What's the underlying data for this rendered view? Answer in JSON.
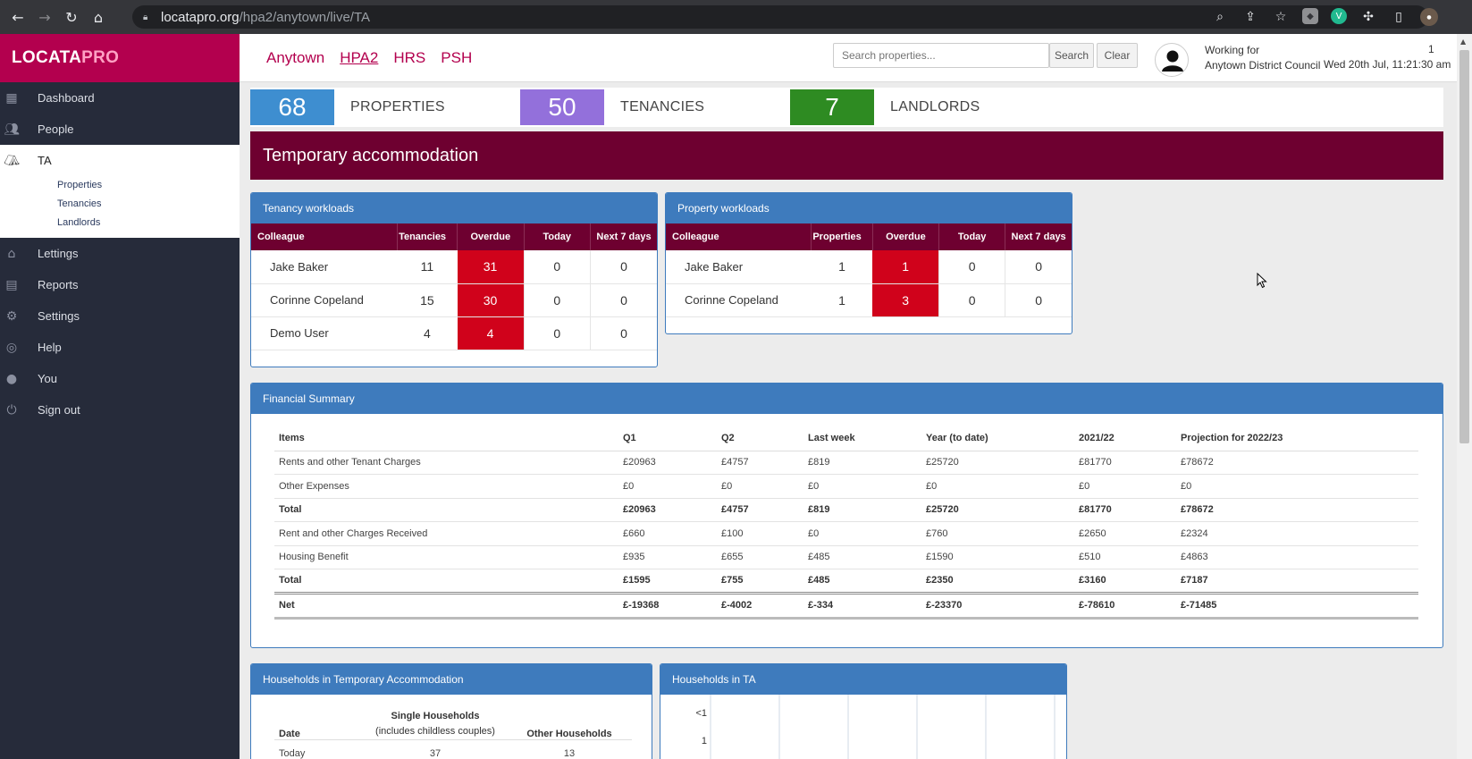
{
  "browser": {
    "url_host": "locatapro.org",
    "url_path": "/hpa2/anytown/live/TA"
  },
  "brand": {
    "part1": "LOCATA",
    "part2": "PRO"
  },
  "sidebar": {
    "items": [
      {
        "label": "Dashboard",
        "icon": "grid-icon"
      },
      {
        "label": "People",
        "icon": "people-icon"
      },
      {
        "label": "TA",
        "icon": "tent-icon"
      },
      {
        "label": "Lettings",
        "icon": "home-icon"
      },
      {
        "label": "Reports",
        "icon": "document-icon"
      },
      {
        "label": "Settings",
        "icon": "gear-icon"
      },
      {
        "label": "Help",
        "icon": "lifebuoy-icon"
      },
      {
        "label": "You",
        "icon": "person-icon"
      },
      {
        "label": "Sign out",
        "icon": "power-icon"
      }
    ],
    "ta_sub": [
      "Properties",
      "Tenancies",
      "Landlords"
    ]
  },
  "topnav": {
    "links": [
      "Anytown",
      "HPA2",
      "HRS",
      "PSH"
    ],
    "active": "HPA2"
  },
  "search": {
    "placeholder": "Search properties...",
    "search_label": "Search",
    "clear_label": "Clear"
  },
  "user": {
    "working_for_label": "Working for",
    "org": "Anytown District Council",
    "datetime": "Wed 20th Jul, 11:21:30 am",
    "count": "1"
  },
  "stats": [
    {
      "value": "68",
      "label": "PROPERTIES",
      "color": "#3e8ed0"
    },
    {
      "value": "50",
      "label": "TENANCIES",
      "color": "#9370db"
    },
    {
      "value": "7",
      "label": "LANDLORDS",
      "color": "#2e8b22"
    }
  ],
  "banner": {
    "title": "Temporary accommodation"
  },
  "tenancy_workloads": {
    "title": "Tenancy workloads",
    "headers": [
      "Colleague",
      "Tenancies",
      "Overdue",
      "Today",
      "Next 7 days"
    ],
    "rows": [
      {
        "name": "Jake Baker",
        "count": "11",
        "overdue": "31",
        "today": "0",
        "next7": "0"
      },
      {
        "name": "Corinne Copeland",
        "count": "15",
        "overdue": "30",
        "today": "0",
        "next7": "0"
      },
      {
        "name": "Demo User",
        "count": "4",
        "overdue": "4",
        "today": "0",
        "next7": "0"
      }
    ]
  },
  "property_workloads": {
    "title": "Property workloads",
    "headers": [
      "Colleague",
      "Properties",
      "Overdue",
      "Today",
      "Next 7 days"
    ],
    "rows": [
      {
        "name": "Jake Baker",
        "count": "1",
        "overdue": "1",
        "today": "0",
        "next7": "0"
      },
      {
        "name": "Corinne Copeland",
        "count": "1",
        "overdue": "3",
        "today": "0",
        "next7": "0"
      }
    ]
  },
  "financial": {
    "title": "Financial Summary",
    "headers": [
      "Items",
      "Q1",
      "Q2",
      "Last week",
      "Year (to date)",
      "2021/22",
      "Projection for 2022/23"
    ],
    "rows": [
      {
        "cells": [
          "Rents and other Tenant Charges",
          "£20963",
          "£4757",
          "£819",
          "£25720",
          "£81770",
          "£78672"
        ],
        "style": ""
      },
      {
        "cells": [
          "Other Expenses",
          "£0",
          "£0",
          "£0",
          "£0",
          "£0",
          "£0"
        ],
        "style": ""
      },
      {
        "cells": [
          "Total",
          "£20963",
          "£4757",
          "£819",
          "£25720",
          "£81770",
          "£78672"
        ],
        "style": "bold"
      },
      {
        "cells": [
          "Rent and other Charges Received",
          "£660",
          "£100",
          "£0",
          "£760",
          "£2650",
          "£2324"
        ],
        "style": ""
      },
      {
        "cells": [
          "Housing Benefit",
          "£935",
          "£655",
          "£485",
          "£1590",
          "£510",
          "£4863"
        ],
        "style": ""
      },
      {
        "cells": [
          "Total",
          "£1595",
          "£755",
          "£485",
          "£2350",
          "£3160",
          "£7187"
        ],
        "style": "bold"
      },
      {
        "cells": [
          "Net",
          "£-19368",
          "£-4002",
          "£-334",
          "£-23370",
          "£-78610",
          "£-71485"
        ],
        "style": "bold net"
      }
    ]
  },
  "households_ta": {
    "title": "Households in Temporary Accommodation",
    "h_date": "Date",
    "h_single": "Single Households",
    "h_single_sub": "(includes childless couples)",
    "h_other": "Other Households",
    "row_date": "Today",
    "row_single": "37",
    "row_other": "13"
  },
  "households_chart": {
    "title": "Households in TA",
    "y_ticks": [
      "<1",
      "1"
    ]
  }
}
